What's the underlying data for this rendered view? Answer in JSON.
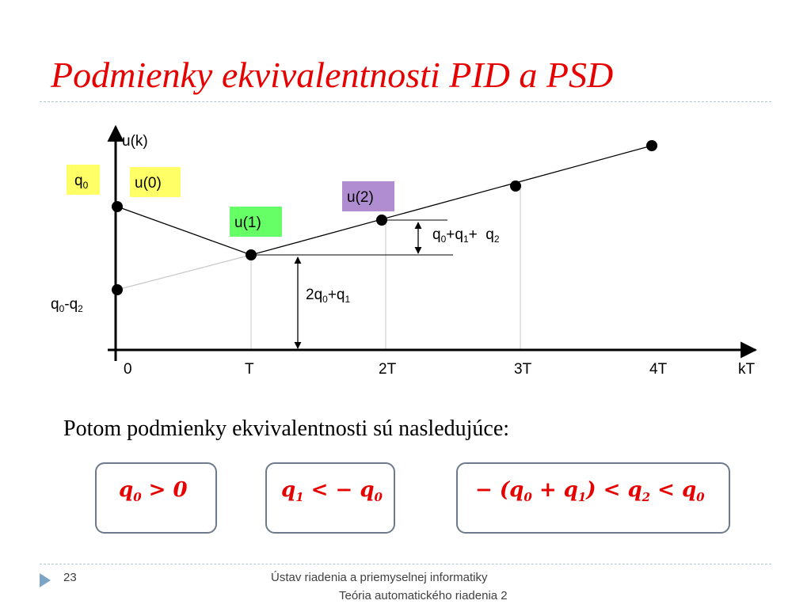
{
  "slide": {
    "title": "Podmienky ekvivalentnosti PID a PSD",
    "intro": "Potom podmienky ekvivalentnosti sú nasledujúce:"
  },
  "diagram": {
    "axis_y_label": "u(k)",
    "axis_x_label": "kT",
    "ticks": [
      "0",
      "T",
      "2T",
      "3T",
      "4T"
    ],
    "labels": {
      "q0": {
        "base": "q",
        "sub": "0",
        "bg": "#ffff66"
      },
      "u0": {
        "text": "u(0)",
        "bg": "#ffff66"
      },
      "u1": {
        "text": "u(1)",
        "bg": "#66ff66"
      },
      "u2": {
        "text": "u(2)",
        "bg": "#b08cd0"
      },
      "q0_minus_q2": {
        "parts": [
          [
            "q",
            "0"
          ],
          [
            "-q",
            "2"
          ]
        ]
      },
      "q0_q1_q2": {
        "parts": [
          [
            "q",
            "0"
          ],
          [
            "+q",
            "1"
          ],
          [
            "+  q",
            "2"
          ]
        ]
      },
      "two_q0_q1": {
        "parts": [
          [
            "2q",
            "0"
          ],
          [
            "+q",
            "1"
          ]
        ]
      }
    },
    "colors": {
      "line": "#000000",
      "aux_line": "#c8c8c8",
      "point": "#000000"
    }
  },
  "conditions": [
    {
      "parts": [
        [
          "q",
          "0"
        ],
        [
          " > 0",
          ""
        ]
      ]
    },
    {
      "parts": [
        [
          "q",
          "1"
        ],
        [
          " < − q",
          "0"
        ]
      ]
    },
    {
      "parts": [
        [
          "− (q",
          "0"
        ],
        [
          " + q",
          "1"
        ],
        [
          ") < q",
          "2"
        ],
        [
          " < q",
          "0"
        ]
      ]
    }
  ],
  "footer": {
    "page": "23",
    "institute": "Ústav riadenia a priemyselnej informatiky",
    "course": "Teória automatického riadenia 2"
  }
}
